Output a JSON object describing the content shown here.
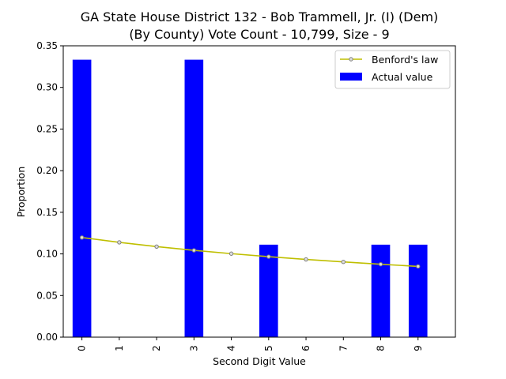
{
  "chart_data": {
    "type": "bar",
    "title_line1": "GA State House District 132 - Bob Trammell, Jr. (I) (Dem)",
    "title_line2": "(By County) Vote Count - 10,799, Size - 9",
    "xlabel": "Second Digit Value",
    "ylabel": "Proportion",
    "categories": [
      "0",
      "1",
      "2",
      "3",
      "4",
      "5",
      "6",
      "7",
      "8",
      "9"
    ],
    "ylim": [
      0,
      0.35
    ],
    "yticks": [
      "0.00",
      "0.05",
      "0.10",
      "0.15",
      "0.20",
      "0.25",
      "0.30",
      "0.35"
    ],
    "legend_position": "top-right",
    "series": [
      {
        "name": "Actual value",
        "kind": "bar",
        "color": "#0000ff",
        "values": [
          0.3333,
          0,
          0,
          0.3333,
          0,
          0.1111,
          0,
          0,
          0.1111,
          0.1111
        ]
      },
      {
        "name": "Benford's law",
        "kind": "line",
        "color": "#bfbf00",
        "values": [
          0.1197,
          0.1139,
          0.1088,
          0.1043,
          0.1003,
          0.0967,
          0.0934,
          0.0904,
          0.0876,
          0.085
        ]
      }
    ]
  }
}
